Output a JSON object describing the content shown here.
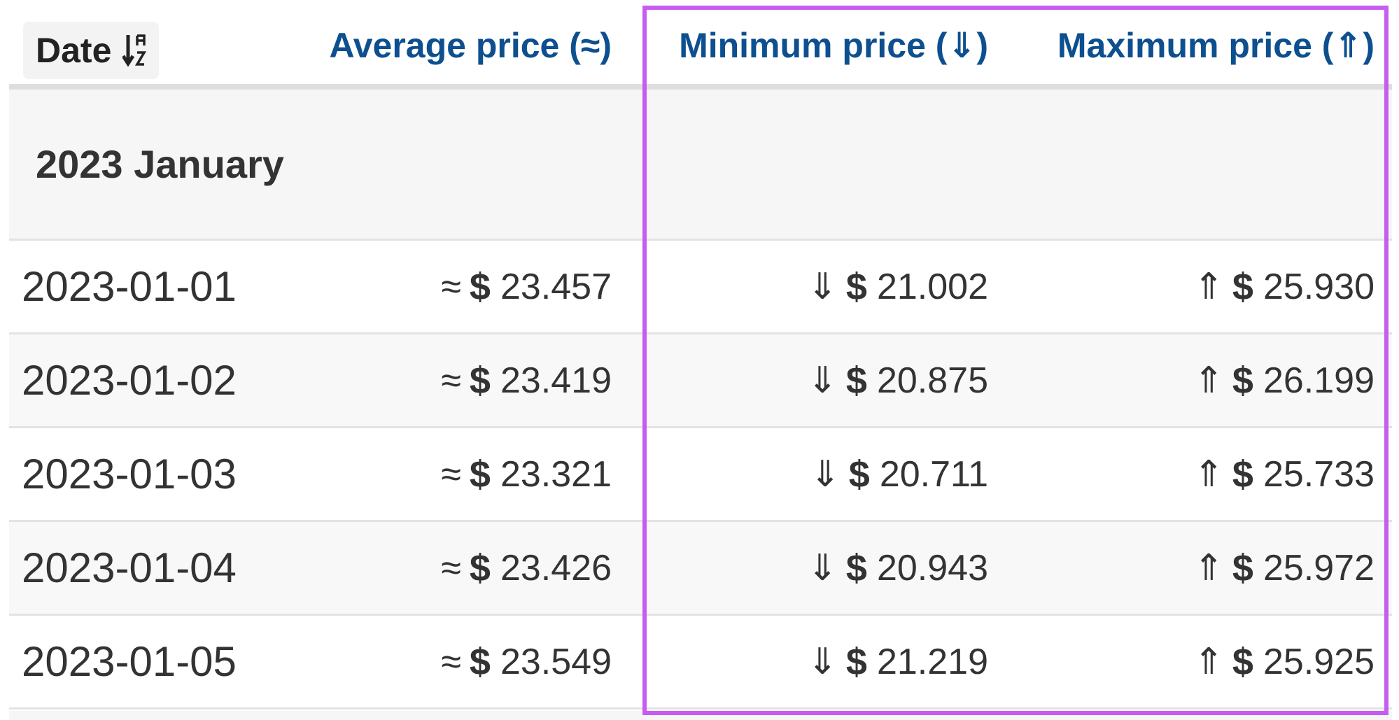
{
  "header": {
    "date": "Date",
    "average": "Average price (≈)",
    "minimum": "Minimum price (⇓)",
    "maximum": "Maximum price (⇑)",
    "sort_icon": "sort-ascending-icon"
  },
  "group": {
    "label": "2023 January"
  },
  "symbols": {
    "approx": "≈",
    "down": "⇓",
    "up": "⇑",
    "currency": "$"
  },
  "rows": [
    {
      "date": "2023-01-01",
      "average": "23.457",
      "minimum": "21.002",
      "maximum": "25.930"
    },
    {
      "date": "2023-01-02",
      "average": "23.419",
      "minimum": "20.875",
      "maximum": "26.199"
    },
    {
      "date": "2023-01-03",
      "average": "23.321",
      "minimum": "20.711",
      "maximum": "25.733"
    },
    {
      "date": "2023-01-04",
      "average": "23.426",
      "minimum": "20.943",
      "maximum": "25.972"
    },
    {
      "date": "2023-01-05",
      "average": "23.549",
      "minimum": "21.219",
      "maximum": "25.925"
    }
  ],
  "colors": {
    "header_text": "#0d4f8f",
    "highlight": "#c65cf0"
  }
}
